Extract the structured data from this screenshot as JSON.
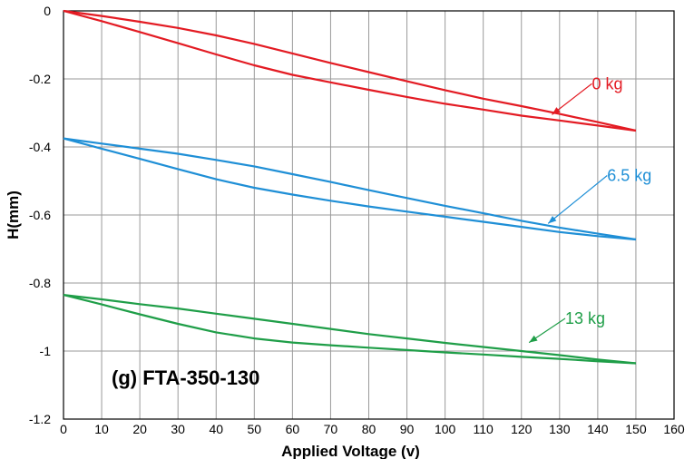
{
  "chart_data": {
    "type": "line",
    "annotation": "(g) FTA-350-130",
    "xlabel": "Applied Voltage (v)",
    "ylabel": "H(mm)",
    "xlim": [
      0,
      160
    ],
    "ylim": [
      -1.2,
      0
    ],
    "xticks": [
      0,
      10,
      20,
      30,
      40,
      50,
      60,
      70,
      80,
      90,
      100,
      110,
      120,
      130,
      140,
      150,
      160
    ],
    "yticks": [
      0,
      -0.2,
      -0.4,
      -0.6,
      -0.8,
      -1,
      -1.2
    ],
    "ytick_labels": [
      "0",
      "-0.2",
      "-0.4",
      "-0.6",
      "-0.8",
      "-1",
      "-1.2"
    ],
    "grid": true,
    "series": [
      {
        "name": "0 kg",
        "color": "#e31b23",
        "label_at": [
          138,
          -0.23
        ],
        "arrow_to": [
          128,
          -0.305
        ],
        "branches": [
          {
            "x": [
              0,
              10,
              20,
              30,
              40,
              50,
              60,
              70,
              80,
              90,
              100,
              110,
              120,
              130,
              140,
              150
            ],
            "y": [
              0,
              -0.015,
              -0.032,
              -0.05,
              -0.072,
              -0.097,
              -0.125,
              -0.153,
              -0.18,
              -0.207,
              -0.233,
              -0.258,
              -0.28,
              -0.303,
              -0.327,
              -0.352
            ]
          },
          {
            "x": [
              0,
              10,
              20,
              30,
              40,
              50,
              60,
              70,
              80,
              90,
              100,
              110,
              120,
              130,
              140,
              150
            ],
            "y": [
              0,
              -0.03,
              -0.062,
              -0.095,
              -0.128,
              -0.16,
              -0.188,
              -0.21,
              -0.232,
              -0.253,
              -0.273,
              -0.29,
              -0.308,
              -0.322,
              -0.337,
              -0.352
            ]
          }
        ]
      },
      {
        "name": "6.5 kg",
        "color": "#1f8fd6",
        "label_at": [
          142,
          -0.5
        ],
        "arrow_to": [
          127,
          -0.625
        ],
        "branches": [
          {
            "x": [
              0,
              10,
              20,
              30,
              40,
              50,
              60,
              70,
              80,
              90,
              100,
              110,
              120,
              130,
              140,
              150
            ],
            "y": [
              -0.375,
              -0.39,
              -0.405,
              -0.42,
              -0.438,
              -0.457,
              -0.48,
              -0.503,
              -0.527,
              -0.55,
              -0.573,
              -0.595,
              -0.617,
              -0.637,
              -0.655,
              -0.672
            ]
          },
          {
            "x": [
              0,
              10,
              20,
              30,
              40,
              50,
              60,
              70,
              80,
              90,
              100,
              110,
              120,
              130,
              140,
              150
            ],
            "y": [
              -0.375,
              -0.405,
              -0.435,
              -0.465,
              -0.495,
              -0.52,
              -0.54,
              -0.558,
              -0.575,
              -0.59,
              -0.605,
              -0.62,
              -0.635,
              -0.65,
              -0.662,
              -0.672
            ]
          }
        ]
      },
      {
        "name": "13 kg",
        "color": "#1f9e48",
        "label_at": [
          131,
          -0.92
        ],
        "arrow_to": [
          122,
          -0.975
        ],
        "branches": [
          {
            "x": [
              0,
              10,
              20,
              30,
              40,
              50,
              60,
              70,
              80,
              90,
              100,
              110,
              120,
              130,
              140,
              150
            ],
            "y": [
              -0.835,
              -0.848,
              -0.862,
              -0.875,
              -0.89,
              -0.905,
              -0.92,
              -0.935,
              -0.95,
              -0.963,
              -0.976,
              -0.988,
              -1.0,
              -1.012,
              -1.025,
              -1.036
            ]
          },
          {
            "x": [
              0,
              10,
              20,
              30,
              40,
              50,
              60,
              70,
              80,
              90,
              100,
              110,
              120,
              130,
              140,
              150
            ],
            "y": [
              -0.835,
              -0.863,
              -0.892,
              -0.92,
              -0.945,
              -0.963,
              -0.975,
              -0.983,
              -0.99,
              -0.997,
              -1.004,
              -1.01,
              -1.017,
              -1.023,
              -1.03,
              -1.036
            ]
          }
        ]
      }
    ]
  }
}
